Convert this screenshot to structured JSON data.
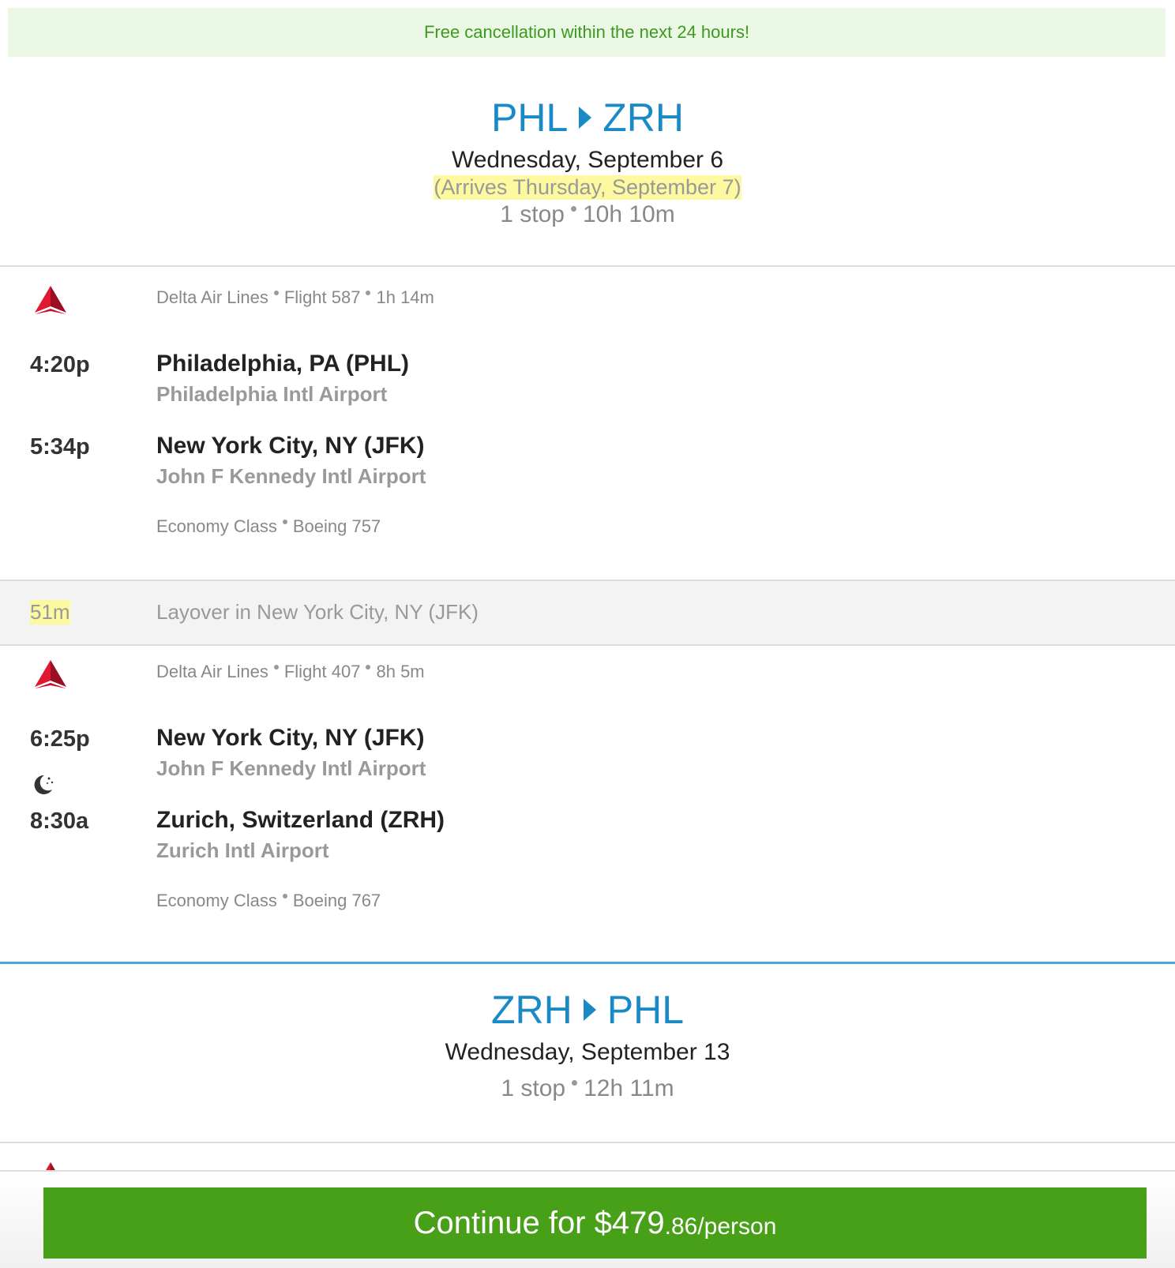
{
  "banner": "Free cancellation within the next 24 hours!",
  "outbound": {
    "from": "PHL",
    "to": "ZRH",
    "date": "Wednesday, September 6",
    "arrives": "(Arrives Thursday, September 7)",
    "stops": "1 stop",
    "duration": "10h 10m",
    "segments": [
      {
        "airline": "Delta Air Lines",
        "flight": "Flight 587",
        "duration": "1h 14m",
        "dep_time": "4:20p",
        "dep_city": "Philadelphia, PA (PHL)",
        "dep_airport": "Philadelphia Intl Airport",
        "arr_time": "5:34p",
        "arr_city": "New York City, NY (JFK)",
        "arr_airport": "John F Kennedy Intl Airport",
        "cabin": "Economy Class",
        "aircraft": "Boeing 757"
      },
      {
        "airline": "Delta Air Lines",
        "flight": "Flight 407",
        "duration": "8h 5m",
        "dep_time": "6:25p",
        "dep_city": "New York City, NY (JFK)",
        "dep_airport": "John F Kennedy Intl Airport",
        "arr_time": "8:30a",
        "arr_city": "Zurich, Switzerland (ZRH)",
        "arr_airport": "Zurich Intl Airport",
        "cabin": "Economy Class",
        "aircraft": "Boeing 767"
      }
    ],
    "layover": {
      "duration": "51m",
      "text": "Layover in New York City, NY (JFK)"
    }
  },
  "return": {
    "from": "ZRH",
    "to": "PHL",
    "date": "Wednesday, September 13",
    "stops": "1 stop",
    "duration": "12h 11m"
  },
  "cta": {
    "main": "Continue for $479",
    "cents": ".86/person"
  },
  "colors": {
    "accent": "#1a8ac6",
    "cta": "#48a019",
    "banner_bg": "#ebf8e5",
    "highlight": "#fdf9a0"
  }
}
